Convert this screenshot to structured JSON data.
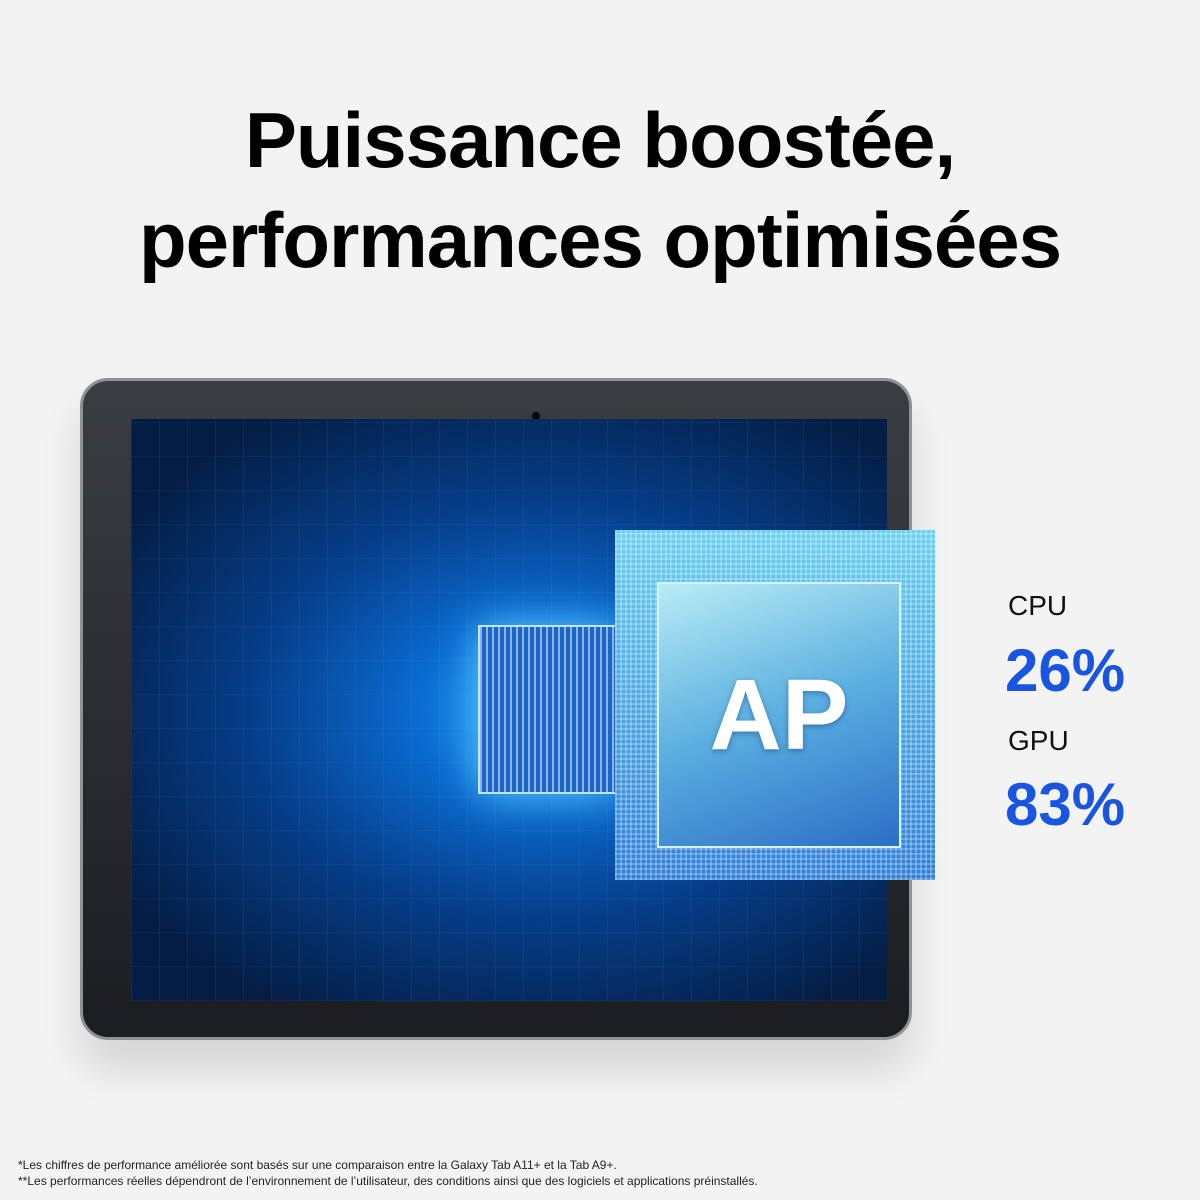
{
  "headline": {
    "line1": "Puissance boostée,",
    "line2": "performances optimisées"
  },
  "chip": {
    "label": "AP"
  },
  "stats": [
    {
      "label": "CPU",
      "value": "26%"
    },
    {
      "label": "GPU",
      "value": "83%"
    }
  ],
  "colors": {
    "accent": "#1a55e0",
    "background": "#f3f3f3"
  },
  "footnotes": [
    "*Les chiffres de performance améliorée sont basés sur une comparaison entre la Galaxy Tab A11+ et la Tab A9+.",
    "**Les performances réelles dépendront de l’environnement de l’utilisateur, des conditions ainsi que des logiciels et applications préinstallés."
  ]
}
